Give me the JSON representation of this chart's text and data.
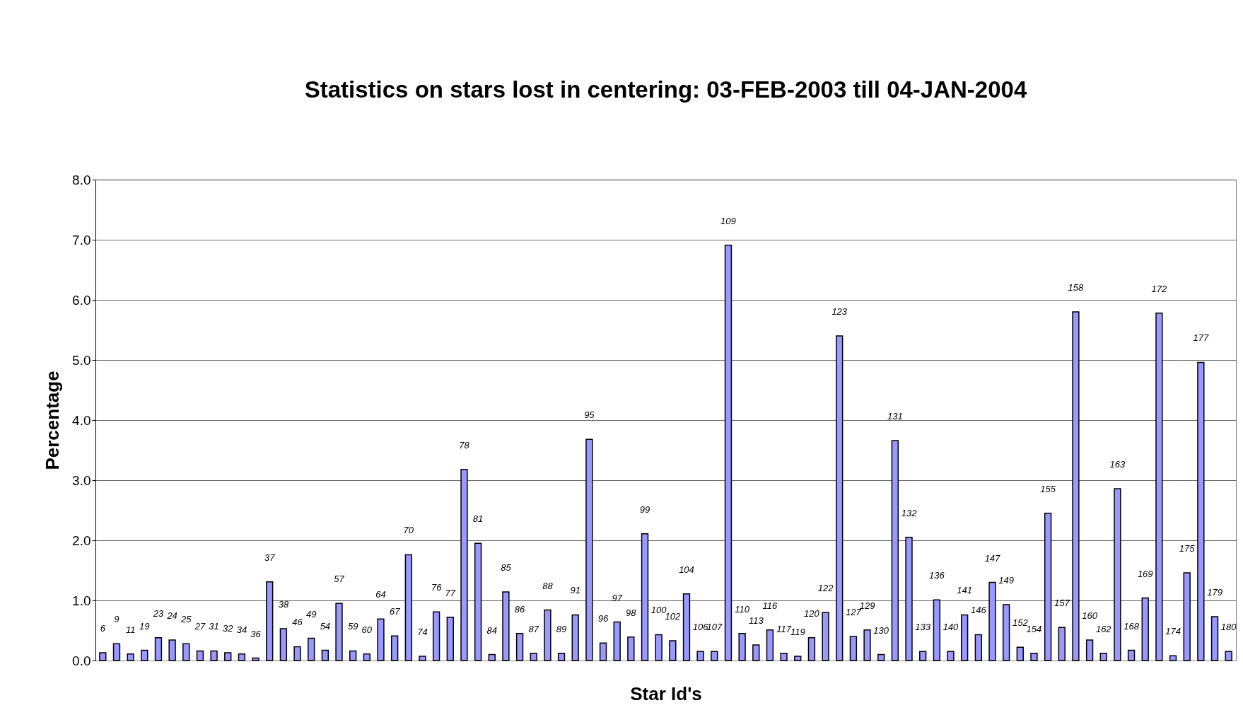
{
  "chart_data": {
    "type": "bar",
    "title": "Statistics on stars lost in centering: 03-FEB-2003 till 04-JAN-2004",
    "xlabel": "Star Id's",
    "ylabel": "Percentage",
    "categories": [
      "6",
      "9",
      "11",
      "19",
      "23",
      "24",
      "25",
      "27",
      "31",
      "32",
      "34",
      "36",
      "37",
      "38",
      "46",
      "49",
      "54",
      "57",
      "59",
      "60",
      "64",
      "67",
      "70",
      "74",
      "76",
      "77",
      "78",
      "81",
      "84",
      "85",
      "86",
      "87",
      "88",
      "89",
      "91",
      "95",
      "96",
      "97",
      "98",
      "99",
      "100",
      "102",
      "104",
      "106",
      "107",
      "109",
      "110",
      "113",
      "116",
      "117",
      "119",
      "120",
      "122",
      "123",
      "127",
      "129",
      "130",
      "131",
      "132",
      "133",
      "136",
      "140",
      "141",
      "146",
      "147",
      "149",
      "152",
      "154",
      "155",
      "157",
      "158",
      "160",
      "162",
      "163",
      "168",
      "169",
      "172",
      "174",
      "175",
      "177",
      "179",
      "180"
    ],
    "values": [
      0.13,
      0.28,
      0.11,
      0.17,
      0.38,
      0.34,
      0.28,
      0.16,
      0.16,
      0.13,
      0.11,
      0.04,
      1.31,
      0.53,
      0.23,
      0.37,
      0.17,
      0.95,
      0.16,
      0.11,
      0.69,
      0.41,
      1.76,
      0.07,
      0.81,
      0.72,
      3.18,
      1.95,
      0.1,
      1.14,
      0.45,
      0.12,
      0.84,
      0.12,
      0.76,
      3.68,
      0.29,
      0.64,
      0.39,
      2.11,
      0.43,
      0.33,
      1.11,
      0.15,
      0.15,
      6.91,
      0.45,
      0.26,
      0.51,
      0.12,
      0.07,
      0.38,
      0.8,
      5.4,
      0.4,
      0.51,
      0.1,
      3.66,
      2.05,
      0.15,
      1.01,
      0.15,
      0.76,
      0.43,
      1.3,
      0.93,
      0.22,
      0.12,
      2.45,
      0.55,
      5.8,
      0.34,
      0.12,
      2.86,
      0.17,
      1.04,
      5.78,
      0.08,
      1.46,
      4.96,
      0.73,
      0.15
    ],
    "color": "#9999ff",
    "ylim": [
      0,
      8
    ],
    "yticks": [
      {
        "value": 0,
        "label": "0.0"
      },
      {
        "value": 1,
        "label": "1.0"
      },
      {
        "value": 2,
        "label": "2.0"
      },
      {
        "value": 3,
        "label": "3.0"
      },
      {
        "value": 4,
        "label": "4.0"
      },
      {
        "value": 5,
        "label": "5.0"
      },
      {
        "value": 6,
        "label": "6.0"
      },
      {
        "value": 7,
        "label": "7.0"
      },
      {
        "value": 8,
        "label": "8.0"
      }
    ],
    "grid": "y",
    "tick_labels": "y"
  }
}
